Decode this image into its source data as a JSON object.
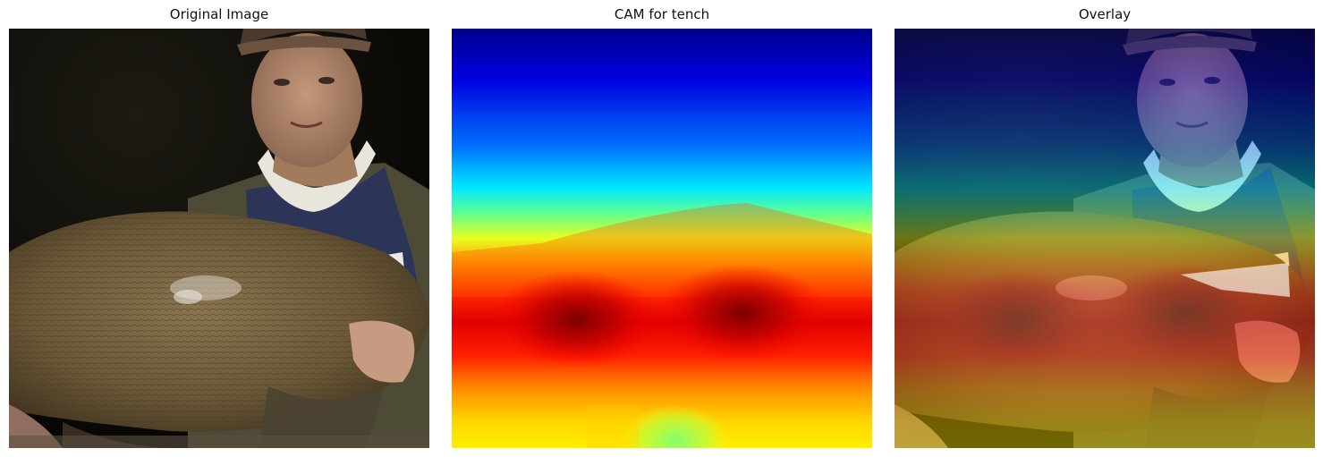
{
  "panels": [
    {
      "title": "Original Image"
    },
    {
      "title": "CAM for tench"
    },
    {
      "title": "Overlay"
    }
  ],
  "colors": {
    "cam_low": "#00008b",
    "cam_mid": "#00ffff",
    "cam_high": "#ff0000",
    "cam_peak": "#8b0000"
  }
}
